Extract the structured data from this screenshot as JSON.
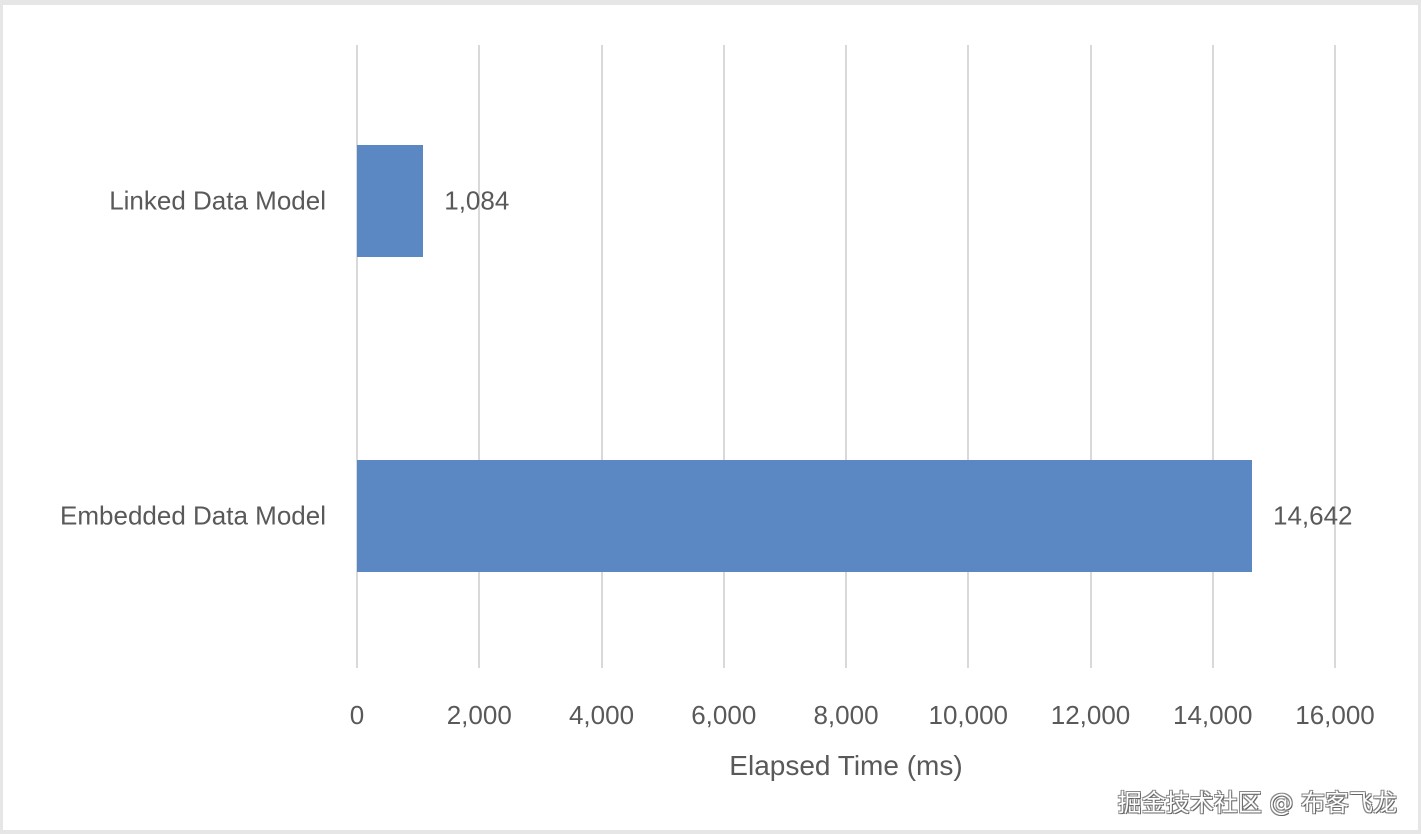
{
  "chart_data": {
    "type": "bar",
    "orientation": "horizontal",
    "title": "",
    "categories": [
      "Linked Data Model",
      "Embedded Data Model"
    ],
    "values": [
      1084,
      14642
    ],
    "value_labels": [
      "1,084",
      "14,642"
    ],
    "xlabel": "Elapsed Time (ms)",
    "ylabel": "",
    "xlim": [
      0,
      16000
    ],
    "x_ticks": [
      "0",
      "2,000",
      "4,000",
      "6,000",
      "8,000",
      "10,000",
      "12,000",
      "14,000",
      "16,000"
    ],
    "grid": true,
    "legend": null,
    "bar_color": "#5b87c2"
  },
  "watermark": "掘金技术社区 @ 布客飞龙"
}
